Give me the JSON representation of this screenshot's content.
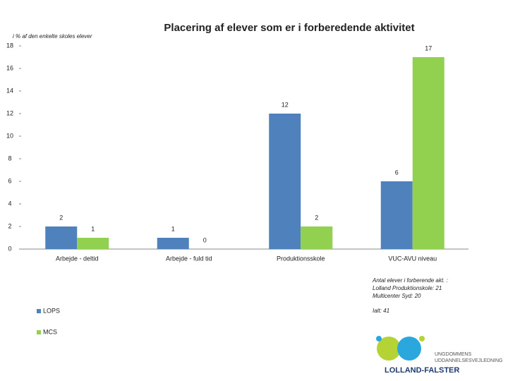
{
  "chart_data": {
    "type": "bar",
    "title": "Placering af elever som er i forberedende aktivitet",
    "y_label": "i % af den enkelte skoles elever",
    "categories": [
      "Arbejde - deltid",
      "Arbejde - fuld tid",
      "Produktionsskole",
      "VUC-AVU niveau"
    ],
    "series": [
      {
        "name": "LOPS",
        "color": "#4f81bd",
        "values": [
          2,
          1,
          12,
          6
        ]
      },
      {
        "name": "MCS",
        "color": "#92d050",
        "values": [
          1,
          0,
          2,
          17
        ]
      }
    ],
    "ylim": [
      0,
      18
    ],
    "yticks": [
      0,
      2,
      4,
      6,
      8,
      10,
      12,
      14,
      16,
      18
    ],
    "grid": false,
    "annotation": [
      "Antal elever i forberende akt. :",
      "Lolland Produktionskole: 21",
      "Multicenter Syd: 20",
      "Ialt: 41"
    ]
  },
  "logo": {
    "line1": "UNGDOMMENS",
    "line2": "UDDANNELSESVEJLEDNING",
    "line3": "LOLLAND-FALSTER"
  }
}
